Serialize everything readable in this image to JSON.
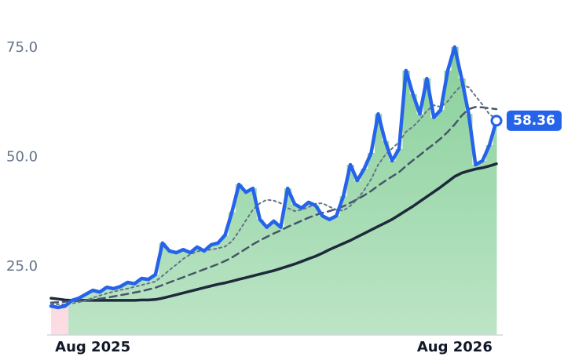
{
  "chart_data": {
    "type": "line",
    "categories": [
      null,
      null,
      null,
      null,
      null,
      null,
      "Aug 2025",
      null,
      null,
      null,
      null,
      null,
      null,
      null,
      null,
      null,
      null,
      null,
      null,
      null,
      null,
      null,
      null,
      null,
      null,
      null,
      null,
      null,
      null,
      null,
      null,
      null,
      null,
      null,
      null,
      null,
      null,
      null,
      null,
      null,
      null,
      null,
      null,
      null,
      null,
      null,
      null,
      null,
      null,
      null,
      null,
      null,
      null,
      null,
      null,
      null,
      null,
      null,
      "Aug 2026",
      null,
      null,
      null,
      null,
      null,
      null
    ],
    "ylim": [
      9.4,
      77
    ],
    "yticks": [
      {
        "value": 25,
        "label": "25.0"
      },
      {
        "value": 50,
        "label": "50.0"
      },
      {
        "value": 75,
        "label": "75.0"
      }
    ],
    "grid": false,
    "fill_colors": [
      "#86cf98",
      "#f9c2cd"
    ],
    "series": [
      {
        "color": "#2563eb",
        "values": [
          16.0,
          15.7,
          16.0,
          17.3,
          17.8,
          18.7,
          19.6,
          19.2,
          20.3,
          20.0,
          20.5,
          21.4,
          21.1,
          22.3,
          22.1,
          23.2,
          30.4,
          28.6,
          28.2,
          28.9,
          28.2,
          29.5,
          28.6,
          30.0,
          30.4,
          32.2,
          37.5,
          43.8,
          42.0,
          42.9,
          35.8,
          34.0,
          35.4,
          34.0,
          42.9,
          39.3,
          38.4,
          39.7,
          39.0,
          36.6,
          35.8,
          36.6,
          41.1,
          48.3,
          44.7,
          47.4,
          51.0,
          59.9,
          53.7,
          49.2,
          51.9,
          69.8,
          64.4,
          59.9,
          68.0,
          59.1,
          60.8,
          69.8,
          75.2,
          68.0,
          59.9,
          48.3,
          49.2,
          52.8,
          58.36
        ]
      },
      {
        "color": "#64748b",
        "values": [
          16.5,
          16.4,
          16.4,
          16.6,
          16.9,
          17.3,
          17.9,
          18.4,
          18.9,
          19.3,
          19.7,
          20.0,
          20.4,
          20.8,
          21.2,
          21.6,
          22.9,
          24.2,
          25.5,
          26.8,
          27.8,
          28.5,
          28.7,
          28.9,
          29.2,
          29.6,
          30.8,
          33.1,
          35.6,
          38.0,
          39.5,
          40.3,
          40.1,
          39.5,
          38.4,
          37.7,
          38.0,
          38.6,
          39.4,
          39.5,
          38.7,
          38.0,
          37.8,
          38.9,
          40.4,
          42.5,
          45.0,
          48.3,
          50.5,
          52.0,
          53.5,
          55.8,
          57.0,
          58.6,
          60.6,
          61.9,
          61.5,
          62.8,
          64.8,
          66.5,
          66.0,
          64.0,
          62.0,
          59.8,
          58.8
        ]
      },
      {
        "color": "#475569",
        "values": [
          16.8,
          16.9,
          17.0,
          17.1,
          17.2,
          17.3,
          17.5,
          17.7,
          17.9,
          18.2,
          18.5,
          18.8,
          19.1,
          19.4,
          19.8,
          20.2,
          20.8,
          21.4,
          22.0,
          22.6,
          23.2,
          23.8,
          24.4,
          25.0,
          25.6,
          26.3,
          27.1,
          28.1,
          29.1,
          30.1,
          31.0,
          31.8,
          32.6,
          33.3,
          34.1,
          34.8,
          35.5,
          36.2,
          36.8,
          37.3,
          37.7,
          38.2,
          38.8,
          39.6,
          40.4,
          41.3,
          42.3,
          43.5,
          44.6,
          45.6,
          46.6,
          48.0,
          49.3,
          50.5,
          51.8,
          53.0,
          54.3,
          55.8,
          57.5,
          59.5,
          61.0,
          61.5,
          61.4,
          61.2,
          61.0
        ]
      },
      {
        "color": "#1e293b",
        "values": [
          17.8,
          17.6,
          17.4,
          17.3,
          17.3,
          17.3,
          17.3,
          17.3,
          17.3,
          17.3,
          17.3,
          17.3,
          17.3,
          17.4,
          17.4,
          17.5,
          17.8,
          18.2,
          18.6,
          19.0,
          19.4,
          19.8,
          20.2,
          20.6,
          21.0,
          21.3,
          21.7,
          22.1,
          22.5,
          22.9,
          23.3,
          23.7,
          24.1,
          24.6,
          25.1,
          25.6,
          26.2,
          26.8,
          27.4,
          28.1,
          28.9,
          29.6,
          30.3,
          31.0,
          31.8,
          32.6,
          33.4,
          34.2,
          35.0,
          35.8,
          36.8,
          37.8,
          38.8,
          39.9,
          41.0,
          42.1,
          43.2,
          44.4,
          45.6,
          46.4,
          46.9,
          47.3,
          47.6,
          48.0,
          48.5
        ]
      }
    ]
  }
}
